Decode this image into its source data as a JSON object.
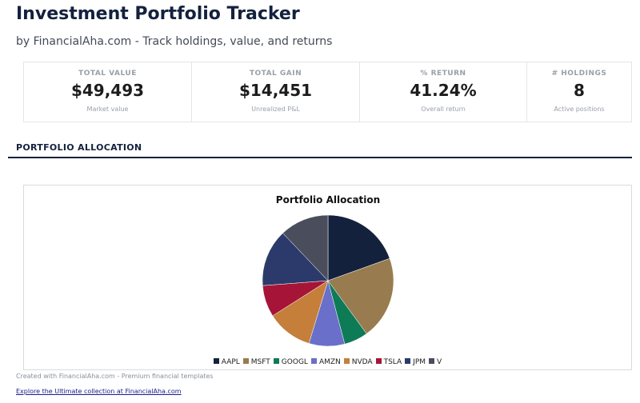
{
  "header": {
    "title": "Investment Portfolio Tracker",
    "subtitle": "by FinancialAha.com - Track holdings, value, and returns"
  },
  "kpis": [
    {
      "label": "TOTAL VALUE",
      "value": "$49,493",
      "sub": "Market value"
    },
    {
      "label": "TOTAL GAIN",
      "value": "$14,451",
      "sub": "Unrealized P&L"
    },
    {
      "label": "% RETURN",
      "value": "41.24%",
      "sub": "Overall return"
    },
    {
      "label": "# HOLDINGS",
      "value": "8",
      "sub": "Active positions"
    }
  ],
  "section": {
    "title": "PORTFOLIO ALLOCATION"
  },
  "chart_data": {
    "type": "pie",
    "title": "Portfolio Allocation",
    "legend": "bottom",
    "categories": [
      "AAPL",
      "MSFT",
      "GOOGL",
      "AMZN",
      "NVDA",
      "TSLA",
      "JPM",
      "V"
    ],
    "values": [
      19.5,
      20.5,
      5.9,
      8.8,
      11.3,
      7.8,
      14.1,
      12.1
    ],
    "colors": [
      "#14213d",
      "#987c4f",
      "#0c7b56",
      "#6a6fc9",
      "#c57f3a",
      "#a61537",
      "#2b3a6b",
      "#4a4e5c"
    ]
  },
  "footer": {
    "credit": "Created with FinancialAha.com - Premium financial templates",
    "link": "Explore the Ultimate collection at FinancialAha.com"
  }
}
